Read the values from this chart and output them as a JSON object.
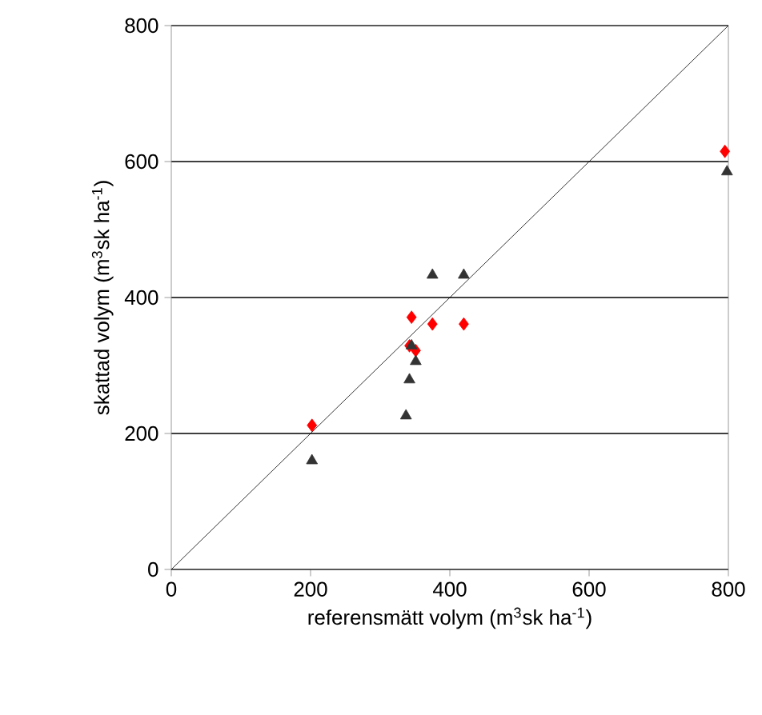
{
  "chart_data": {
    "type": "scatter",
    "xlabel": "referensmätt volym (m$^{3}$sk ha$^{-1}$)",
    "ylabel": "skattad volym (m$^{3}$sk ha$^{-1}$)",
    "xlim": [
      0,
      800
    ],
    "ylim": [
      0,
      800
    ],
    "xticks": [
      0,
      200,
      400,
      600,
      800
    ],
    "yticks": [
      0,
      200,
      400,
      600,
      800
    ],
    "grid": "y",
    "series": [
      {
        "type": "line",
        "color": "#000000",
        "x": [
          0,
          800
        ],
        "values": [
          0,
          800
        ],
        "marker": "none"
      },
      {
        "color": "#ff0000",
        "marker": "diamond",
        "x": [
          202,
          345,
          375,
          420,
          342,
          351,
          795
        ],
        "values": [
          212,
          371,
          361,
          361,
          329,
          322,
          615
        ]
      },
      {
        "color": "#333333",
        "marker": "triangle",
        "x": [
          375,
          420,
          345,
          351,
          342,
          337,
          202,
          798
        ],
        "values": [
          433,
          433,
          329,
          306,
          279,
          226,
          160,
          585
        ]
      }
    ]
  }
}
